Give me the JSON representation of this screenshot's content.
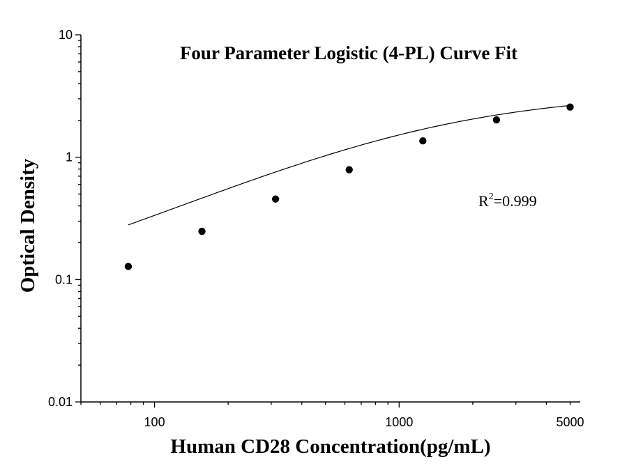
{
  "chart_data": {
    "type": "scatter",
    "title": "Four Parameter Logistic (4-PL) Curve Fit",
    "xlabel": "Human CD28 Concentration(pg/mL)",
    "ylabel": "Optical Density",
    "x_scale": "log",
    "y_scale": "log",
    "xlim": [
      50,
      5500
    ],
    "ylim": [
      0.01,
      10
    ],
    "x_ticks": [
      {
        "value": 100,
        "label": "100"
      },
      {
        "value": 1000,
        "label": "1000"
      },
      {
        "value": 5000,
        "label": "5000"
      }
    ],
    "y_ticks": [
      {
        "value": 0.01,
        "label": "0.01"
      },
      {
        "value": 0.1,
        "label": "0.1"
      },
      {
        "value": 1,
        "label": "1"
      },
      {
        "value": 10,
        "label": "10"
      }
    ],
    "points": {
      "x": [
        78.125,
        156.25,
        312.5,
        625,
        1250,
        2500,
        5000
      ],
      "y": [
        0.128,
        0.248,
        0.455,
        0.79,
        1.36,
        2.02,
        2.57
      ]
    },
    "fit": {
      "model": "4PL",
      "A": 0.045,
      "D": 3.4,
      "C": 1300,
      "B": 0.92
    },
    "annotation": {
      "base": "R",
      "sup": "2",
      "text": "=0.999"
    },
    "grid": false,
    "legend": "none",
    "colors": {
      "points": "#000000",
      "curve": "#000000",
      "axes": "#000000"
    }
  }
}
